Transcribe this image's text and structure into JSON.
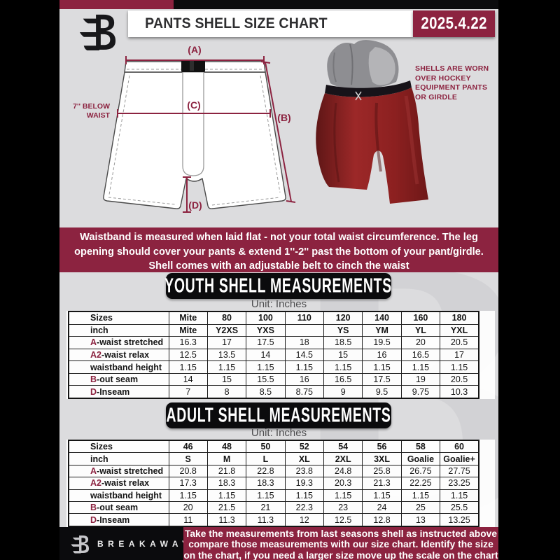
{
  "header": {
    "title": "PANTS SHELL SIZE CHART",
    "date": "2025.4.22"
  },
  "watermark": {
    "letter": "B"
  },
  "diagram": {
    "label_a": "(A)",
    "label_b": "(B)",
    "label_c": "(C)",
    "label_d": "(D)",
    "below_waist_line1": "7'' BELOW",
    "below_waist_line2": "WAIST",
    "photo_note_lines": [
      "SHELLS ARE WORN",
      "OVER HOCKEY",
      "EQUIPMENT PANTS",
      "OR GIRDLE"
    ]
  },
  "banner": {
    "lines": [
      "Waistband is measured when laid flat - not your total waist circumference. The leg",
      "opening should cover your pants & extend 1''-2'' past the bottom of your pant/girdle.",
      "Shell comes with an adjustable belt to cinch the waist"
    ]
  },
  "youth": {
    "heading": "YOUTH SHELL MEASUREMENTS",
    "unit": "Unit: Inches",
    "rows": [
      {
        "prefix": "",
        "label": "Sizes",
        "bold": true,
        "cells": [
          "Mite",
          "80",
          "100",
          "110",
          "120",
          "140",
          "160",
          "180"
        ]
      },
      {
        "prefix": "",
        "label": "inch",
        "bold": true,
        "cells": [
          "Mite",
          "Y2XS",
          "YXS",
          "",
          "YS",
          "YM",
          "YL",
          "YXL"
        ]
      },
      {
        "prefix": "A",
        "label": "-waist stretched",
        "cells": [
          "16.3",
          "17",
          "17.5",
          "18",
          "18.5",
          "19.5",
          "20",
          "20.5"
        ]
      },
      {
        "prefix": "A2",
        "label": "-waist relax",
        "cells": [
          "12.5",
          "13.5",
          "14",
          "14.5",
          "15",
          "16",
          "16.5",
          "17"
        ]
      },
      {
        "prefix": "",
        "label": "waistband height",
        "cells": [
          "1.15",
          "1.15",
          "1.15",
          "1.15",
          "1.15",
          "1.15",
          "1.15",
          "1.15"
        ]
      },
      {
        "prefix": "B",
        "label": "-out seam",
        "cells": [
          "14",
          "15",
          "15.5",
          "16",
          "16.5",
          "17.5",
          "19",
          "20.5"
        ]
      },
      {
        "prefix": "D",
        "label": "-Inseam",
        "cells": [
          "7",
          "8",
          "8.5",
          "8.75",
          "9",
          "9.5",
          "9.75",
          "10.3"
        ]
      }
    ]
  },
  "adult": {
    "heading": "ADULT SHELL MEASUREMENTS",
    "unit": "Unit: Inches",
    "rows": [
      {
        "prefix": "",
        "label": "Sizes",
        "bold": true,
        "cells": [
          "46",
          "48",
          "50",
          "52",
          "54",
          "56",
          "58",
          "60"
        ]
      },
      {
        "prefix": "",
        "label": "inch",
        "bold": true,
        "cells": [
          "S",
          "M",
          "L",
          "XL",
          "2XL",
          "3XL",
          "Goalie",
          "Goalie+"
        ]
      },
      {
        "prefix": "A",
        "label": "-waist stretched",
        "cells": [
          "20.8",
          "21.8",
          "22.8",
          "23.8",
          "24.8",
          "25.8",
          "26.75",
          "27.75"
        ]
      },
      {
        "prefix": "A2",
        "label": "-waist relax",
        "cells": [
          "17.3",
          "18.3",
          "18.3",
          "19.3",
          "20.3",
          "21.3",
          "22.25",
          "23.25"
        ]
      },
      {
        "prefix": "",
        "label": "waistband height",
        "cells": [
          "1.15",
          "1.15",
          "1.15",
          "1.15",
          "1.15",
          "1.15",
          "1.15",
          "1.15"
        ]
      },
      {
        "prefix": "B",
        "label": "-out seam",
        "cells": [
          "20",
          "21.5",
          "21",
          "22.3",
          "23",
          "24",
          "25",
          "25.5"
        ]
      },
      {
        "prefix": "D",
        "label": "-Inseam",
        "cells": [
          "11",
          "11.3",
          "11.3",
          "12",
          "12.5",
          "12.8",
          "13",
          "13.25"
        ]
      }
    ]
  },
  "footer": {
    "brand": "BREAKAWAY",
    "lines": [
      "Take the measurements from last seasons shell as instructed above",
      "compare those measurements  with our size chart. Identify the size",
      "on the chart, if you need a larger size move up the scale on the chart"
    ]
  },
  "colors": {
    "maroon": "#8c2340",
    "black": "#0b0b0d",
    "page_bg": "#dcdcde",
    "watermark": "#d2d2d5",
    "shell_red": "#96252",
    "girdle_gray": "#8e8e92"
  }
}
